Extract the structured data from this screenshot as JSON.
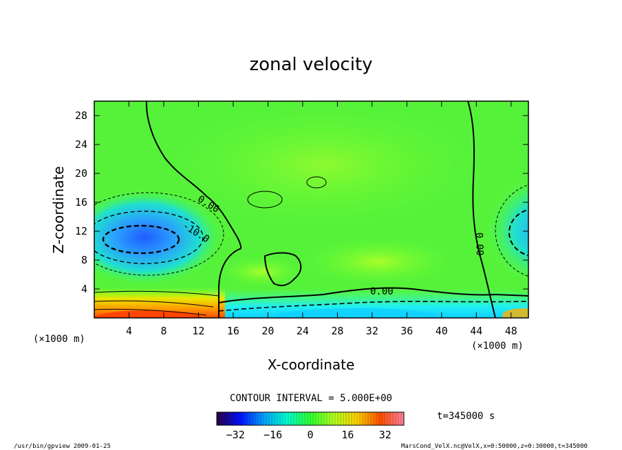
{
  "chart_data": {
    "type": "heatmap",
    "title": "zonal velocity",
    "xlabel": "X-coordinate",
    "ylabel": "Z-coordinate",
    "x_unit": "(×1000 m)",
    "y_unit": "(×1000 m)",
    "xlim": [
      0,
      50
    ],
    "ylim": [
      0,
      30
    ],
    "x_ticks": [
      4,
      8,
      12,
      16,
      20,
      24,
      28,
      32,
      36,
      40,
      44,
      48
    ],
    "y_ticks": [
      4,
      8,
      12,
      16,
      20,
      24,
      28
    ],
    "contour_interval_text": "CONTOUR INTERVAL = 5.000E+00",
    "contour_labels": [
      "0.00",
      "-10.0",
      "0.00",
      "0.00"
    ],
    "time_text": "t=345000 s",
    "colorbar": {
      "min": -40,
      "max": 40,
      "ticks": [
        -32,
        -16,
        0,
        16,
        32
      ],
      "colors": [
        "#2a0040",
        "#0010ff",
        "#00a0ff",
        "#00ffd0",
        "#30ff30",
        "#b0ff20",
        "#ffd000",
        "#ff5000",
        "#ff80a0"
      ]
    },
    "fields": [
      {
        "name": "left vortex core",
        "x": 6,
        "z": 11.5,
        "value": -18
      },
      {
        "name": "right vortex core",
        "x": 50,
        "z": 12,
        "value": -14
      },
      {
        "name": "surface jet",
        "x": 5,
        "z": 0.6,
        "value": 28
      },
      {
        "name": "surface band",
        "x": 30,
        "z": 1.5,
        "value": -12
      },
      {
        "name": "mid region",
        "x": 28,
        "z": 16,
        "value": 2
      }
    ],
    "grid": false
  },
  "footer": {
    "left": "/usr/bin/gpview  2009-01-25",
    "right": "MarsCond_VelX.nc@VelX,x=0:50000,z=0:30000,t=345000"
  }
}
